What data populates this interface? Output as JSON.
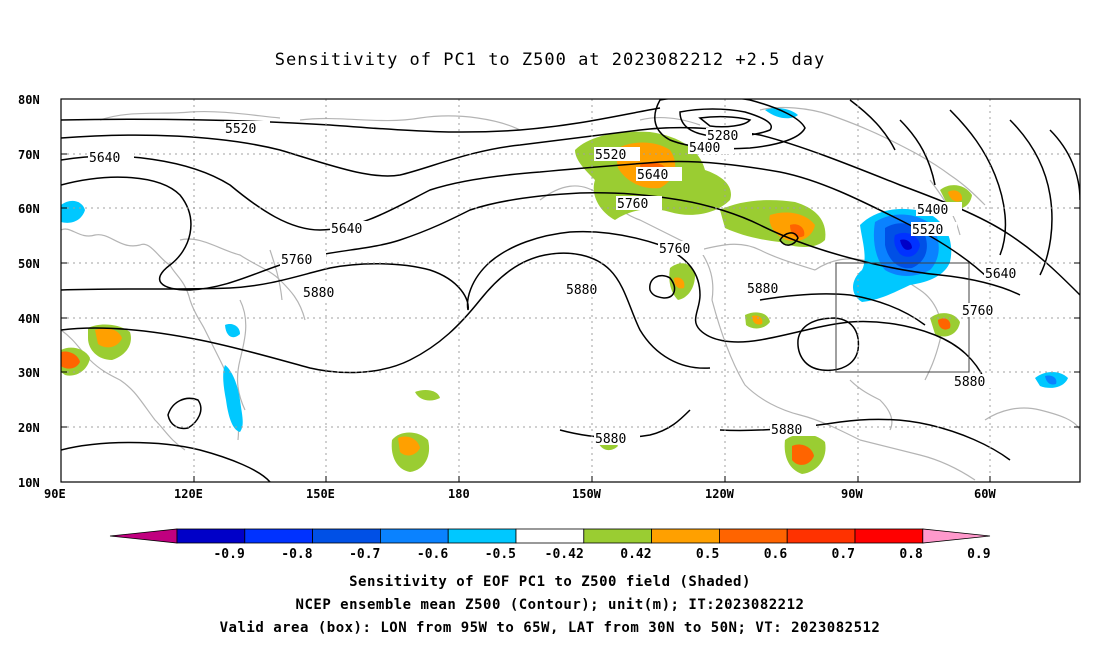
{
  "title": "Sensitivity of PC1 to Z500 at 2023082212 +2.5 day",
  "lat_labels": [
    "80N",
    "70N",
    "60N",
    "50N",
    "40N",
    "30N",
    "20N",
    "10N"
  ],
  "lon_labels": [
    "90E",
    "120E",
    "150E",
    "180",
    "150W",
    "120W",
    "90W",
    "60W"
  ],
  "contour_labels": [
    "5520",
    "5640",
    "5640",
    "5760",
    "5880",
    "5280",
    "5400",
    "5520",
    "5640",
    "5760",
    "5760",
    "5880",
    "5880",
    "5400",
    "5520",
    "5640",
    "5760",
    "5880",
    "5880",
    "5880"
  ],
  "colorbar": {
    "labels": [
      "-0.9",
      "-0.8",
      "-0.7",
      "-0.6",
      "-0.5",
      "-0.42",
      "0.42",
      "0.5",
      "0.6",
      "0.7",
      "0.8",
      "0.9"
    ],
    "colors": [
      "#c0007f",
      "#0000c8",
      "#0032ff",
      "#0050e6",
      "#0a82ff",
      "#00c8ff",
      "#ffffff",
      "#9acd32",
      "#ffa000",
      "#ff6400",
      "#ff3200",
      "#ff0000",
      "#ff99cc"
    ]
  },
  "captions": [
    "Sensitivity of EOF PC1 to Z500 field (Shaded)",
    "NCEP ensemble mean Z500 (Contour); unit(m); IT:2023082212",
    "Valid area (box): LON from 95W to 65W, LAT from 30N to 50N; VT: 2023082512"
  ],
  "valid_box": {
    "lon": [
      -95,
      -65
    ],
    "lat": [
      30,
      50
    ]
  },
  "map_extent": {
    "lon": [
      90,
      320
    ],
    "lat": [
      10,
      80
    ]
  }
}
